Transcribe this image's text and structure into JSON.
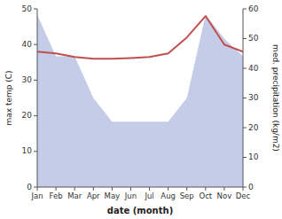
{
  "chart_data": {
    "type": "line",
    "categories": [
      "Jan",
      "Feb",
      "Mar",
      "Apr",
      "May",
      "Jun",
      "Jul",
      "Aug",
      "Sep",
      "Oct",
      "Nov",
      "Dec"
    ],
    "xlabel": "date (month)",
    "ylabel": "max temp (C)",
    "y2label": "med. precipitation (kg/m2)",
    "series": [
      {
        "type": "area",
        "axis": "y2",
        "color": "#c5cce8",
        "values": [
          58,
          44,
          44,
          30,
          22,
          22,
          22,
          22,
          30,
          58,
          50,
          44
        ]
      },
      {
        "type": "line",
        "color": "#c0504d",
        "values": [
          38,
          37.5,
          36.5,
          36,
          36,
          36.2,
          36.5,
          37.5,
          42,
          48,
          40,
          38
        ]
      }
    ],
    "ylim": [
      0,
      50
    ],
    "yticks": [
      0,
      10,
      20,
      30,
      40,
      50
    ],
    "y2lim": [
      0,
      60
    ],
    "y2ticks": [
      0,
      10,
      20,
      30,
      40,
      50,
      60
    ],
    "grid": false
  }
}
